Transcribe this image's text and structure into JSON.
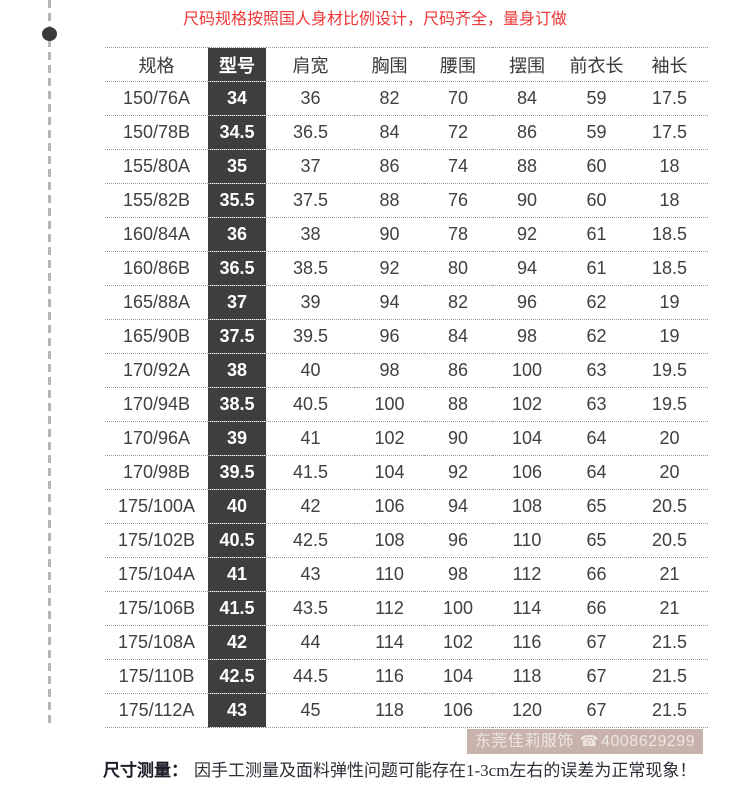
{
  "title": {
    "text": "尺码规格按照国人身材比例设计，尺码齐全，量身订做"
  },
  "colors": {
    "title_red": "#ee3737",
    "model_col_bg": "#3e3e40",
    "watermark_bg": "#c7b3ac",
    "table_text": "#404040",
    "border_gray": "#999999"
  },
  "table": {
    "headers": [
      "规格",
      "型号",
      "肩宽",
      "胸围",
      "腰围",
      "摆围",
      "前衣长",
      "袖长"
    ],
    "rows": [
      [
        "150/76A",
        "34",
        "36",
        "82",
        "70",
        "84",
        "59",
        "17.5"
      ],
      [
        "150/78B",
        "34.5",
        "36.5",
        "84",
        "72",
        "86",
        "59",
        "17.5"
      ],
      [
        "155/80A",
        "35",
        "37",
        "86",
        "74",
        "88",
        "60",
        "18"
      ],
      [
        "155/82B",
        "35.5",
        "37.5",
        "88",
        "76",
        "90",
        "60",
        "18"
      ],
      [
        "160/84A",
        "36",
        "38",
        "90",
        "78",
        "92",
        "61",
        "18.5"
      ],
      [
        "160/86B",
        "36.5",
        "38.5",
        "92",
        "80",
        "94",
        "61",
        "18.5"
      ],
      [
        "165/88A",
        "37",
        "39",
        "94",
        "82",
        "96",
        "62",
        "19"
      ],
      [
        "165/90B",
        "37.5",
        "39.5",
        "96",
        "84",
        "98",
        "62",
        "19"
      ],
      [
        "170/92A",
        "38",
        "40",
        "98",
        "86",
        "100",
        "63",
        "19.5"
      ],
      [
        "170/94B",
        "38.5",
        "40.5",
        "100",
        "88",
        "102",
        "63",
        "19.5"
      ],
      [
        "170/96A",
        "39",
        "41",
        "102",
        "90",
        "104",
        "64",
        "20"
      ],
      [
        "170/98B",
        "39.5",
        "41.5",
        "104",
        "92",
        "106",
        "64",
        "20"
      ],
      [
        "175/100A",
        "40",
        "42",
        "106",
        "94",
        "108",
        "65",
        "20.5"
      ],
      [
        "175/102B",
        "40.5",
        "42.5",
        "108",
        "96",
        "110",
        "65",
        "20.5"
      ],
      [
        "175/104A",
        "41",
        "43",
        "110",
        "98",
        "112",
        "66",
        "21"
      ],
      [
        "175/106B",
        "41.5",
        "43.5",
        "112",
        "100",
        "114",
        "66",
        "21"
      ],
      [
        "175/108A",
        "42",
        "44",
        "114",
        "102",
        "116",
        "67",
        "21.5"
      ],
      [
        "175/110B",
        "42.5",
        "44.5",
        "116",
        "104",
        "118",
        "67",
        "21.5"
      ],
      [
        "175/112A",
        "43",
        "45",
        "118",
        "106",
        "120",
        "67",
        "21.5"
      ]
    ]
  },
  "watermark": {
    "shop": "东莞佳莉服饰",
    "phone_icon": "☎",
    "phone": "4008629299"
  },
  "footnote": {
    "label": "尺寸测量：",
    "text": "因手工测量及面料弹性问题可能存在1-3cm左右的误差为正常现象！"
  }
}
